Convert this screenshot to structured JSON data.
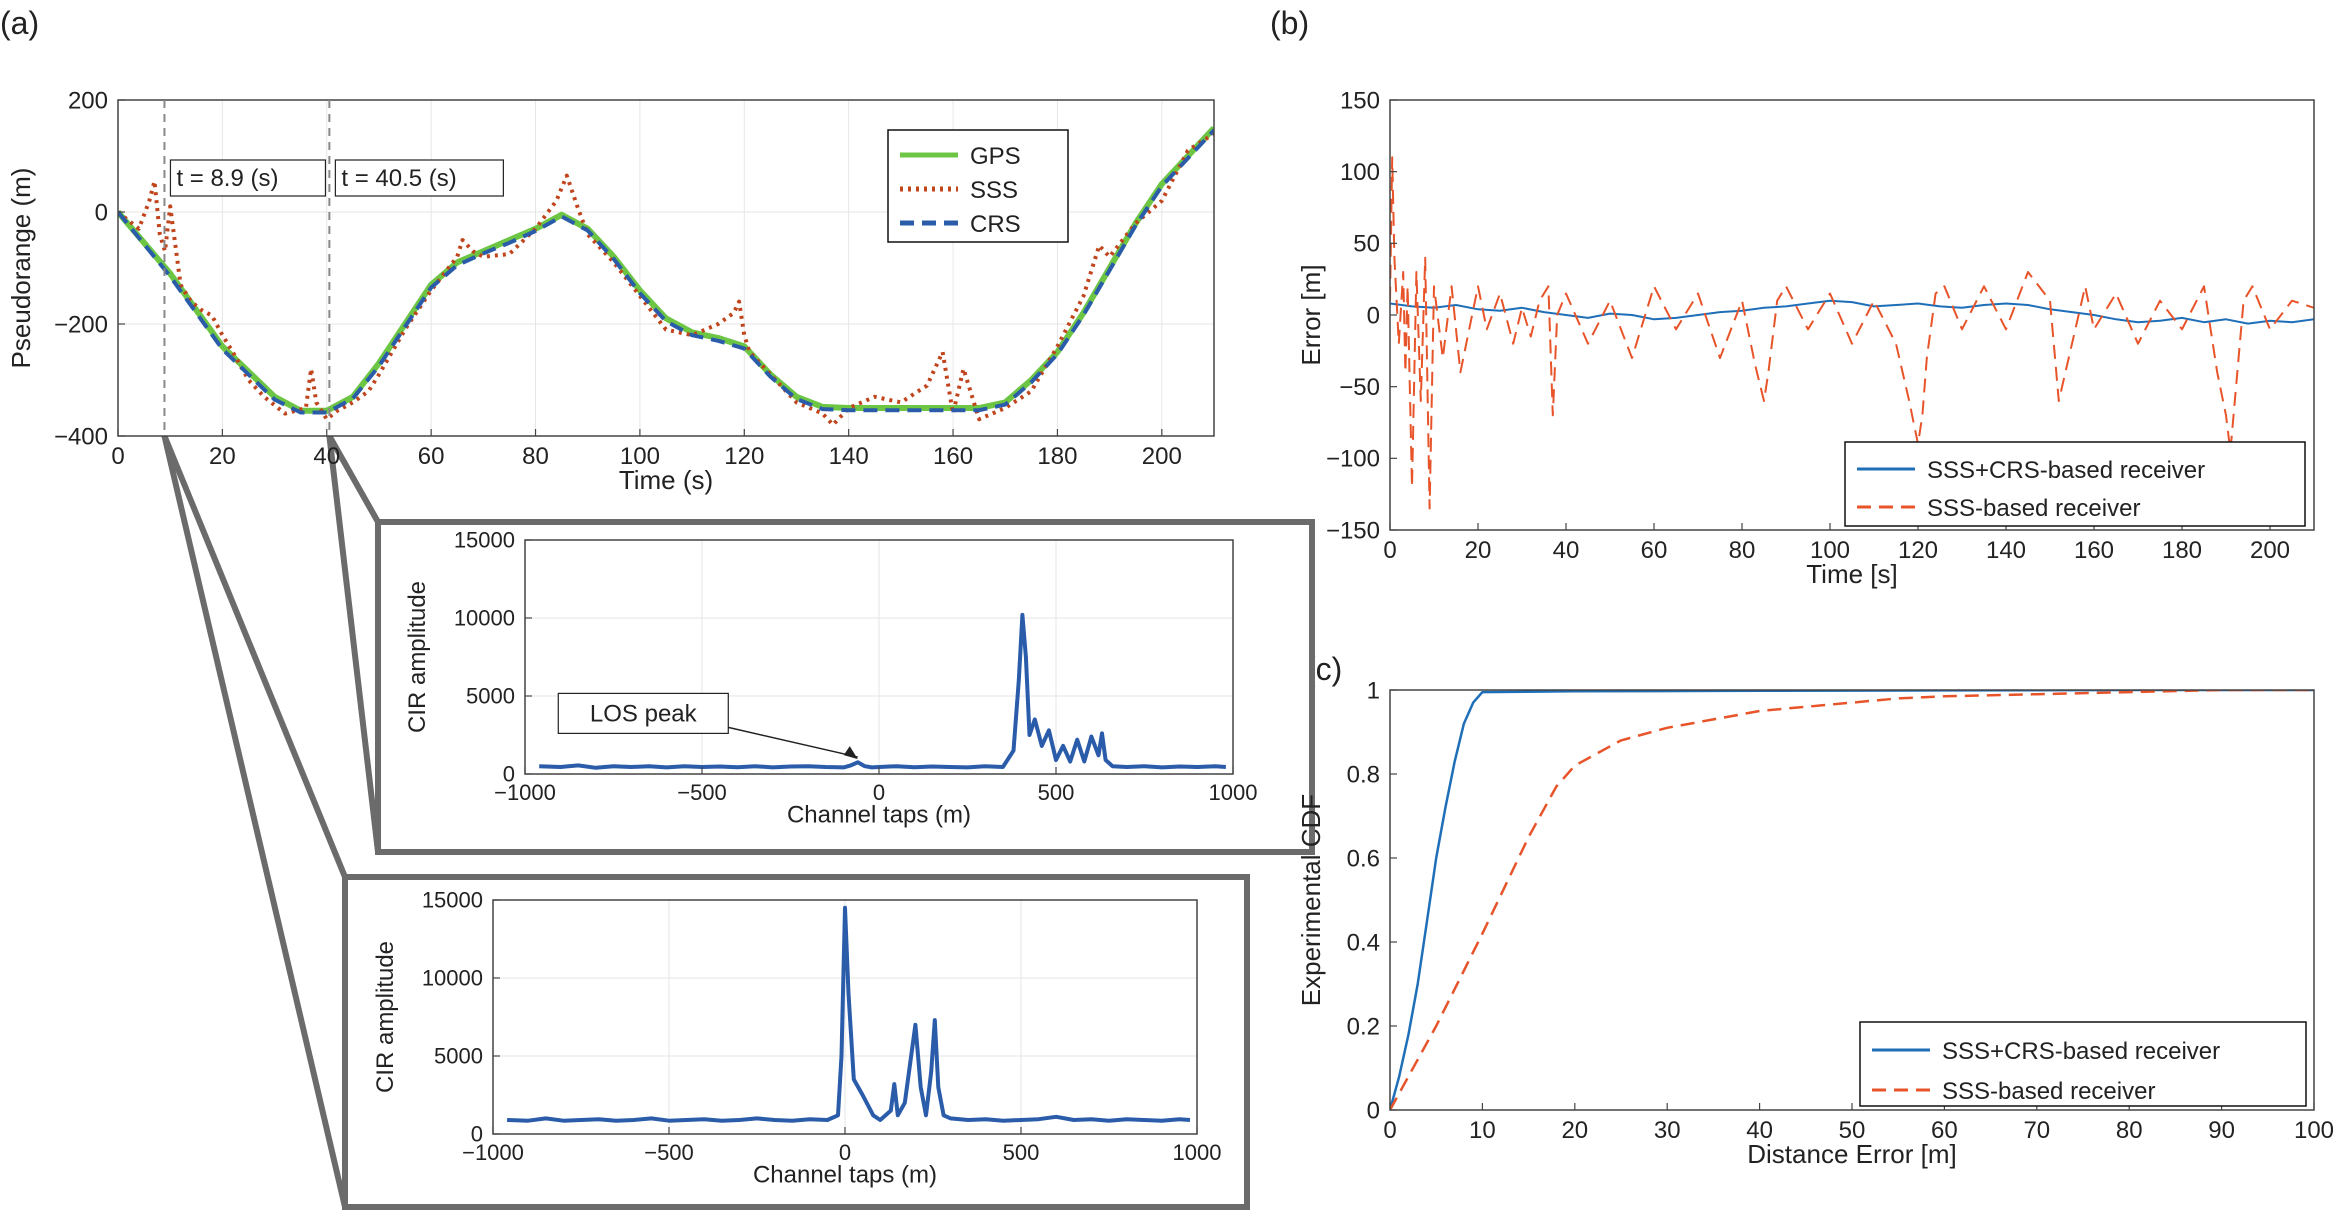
{
  "panel_labels": {
    "a": "(a)",
    "b": "(b)",
    "c": "(c)"
  },
  "colors": {
    "gps": "#6cc644",
    "sss": "#c0441c",
    "crs": "#2a5caa",
    "blue": "#1f6fb8",
    "orange": "#e8542a",
    "cir": "#2a5caa",
    "frame": "#6b6b6b",
    "dashed": "#888888"
  },
  "chart_data": [
    {
      "id": "pseudorange",
      "type": "line",
      "title": "",
      "xlabel": "Time (s)",
      "ylabel": "Pseudorange (m)",
      "xlim": [
        0,
        210
      ],
      "ylim": [
        -400,
        200
      ],
      "xticks": [
        0,
        20,
        40,
        60,
        80,
        100,
        120,
        140,
        160,
        180,
        200
      ],
      "yticks": [
        -400,
        -200,
        0,
        200
      ],
      "grid": true,
      "legend_position": "top-right",
      "annotations": [
        {
          "text": "t = 8.9 (s)",
          "x": 8.9
        },
        {
          "text": "t = 40.5 (s)",
          "x": 40.5
        }
      ],
      "series": [
        {
          "name": "GPS",
          "style": "solid",
          "x": [
            0,
            10,
            20,
            30,
            35,
            40,
            45,
            50,
            55,
            60,
            65,
            70,
            75,
            80,
            85,
            90,
            95,
            100,
            105,
            110,
            115,
            120,
            125,
            130,
            135,
            140,
            145,
            150,
            160,
            165,
            170,
            175,
            180,
            185,
            190,
            195,
            200,
            205,
            210
          ],
          "y": [
            0,
            -110,
            -240,
            -330,
            -355,
            -355,
            -330,
            -270,
            -200,
            -130,
            -90,
            -70,
            -50,
            -30,
            -5,
            -30,
            -80,
            -140,
            -190,
            -215,
            -225,
            -240,
            -290,
            -330,
            -348,
            -350,
            -350,
            -350,
            -350,
            -350,
            -340,
            -300,
            -250,
            -180,
            -100,
            -20,
            50,
            100,
            150
          ]
        },
        {
          "name": "SSS",
          "style": "dotted",
          "x": [
            0,
            2,
            4,
            6,
            7,
            8,
            9,
            10,
            12,
            14,
            16,
            18,
            20,
            22,
            25,
            28,
            30,
            32,
            36,
            37,
            38,
            40,
            42,
            45,
            48,
            50,
            55,
            60,
            65,
            66,
            68,
            70,
            75,
            80,
            84,
            86,
            88,
            90,
            95,
            100,
            105,
            110,
            115,
            118,
            119,
            120,
            121,
            125,
            130,
            135,
            137,
            140,
            145,
            150,
            155,
            158,
            160,
            162,
            165,
            170,
            175,
            180,
            185,
            188,
            190,
            195,
            200,
            205,
            210
          ],
          "y": [
            0,
            -15,
            -30,
            20,
            55,
            -40,
            -70,
            10,
            -130,
            -160,
            -175,
            -185,
            -220,
            -250,
            -300,
            -330,
            -345,
            -360,
            -350,
            -280,
            -340,
            -370,
            -355,
            -340,
            -320,
            -290,
            -210,
            -140,
            -80,
            -50,
            -70,
            -80,
            -75,
            -30,
            20,
            65,
            10,
            -40,
            -90,
            -150,
            -210,
            -220,
            -200,
            -180,
            -160,
            -220,
            -250,
            -290,
            -340,
            -360,
            -380,
            -350,
            -330,
            -340,
            -310,
            -250,
            -360,
            -280,
            -370,
            -350,
            -320,
            -240,
            -150,
            -60,
            -80,
            -20,
            20,
            110,
            140
          ]
        },
        {
          "name": "CRS",
          "style": "dashed",
          "x": [
            0,
            10,
            20,
            30,
            35,
            40,
            45,
            50,
            55,
            60,
            65,
            70,
            75,
            80,
            85,
            90,
            95,
            100,
            105,
            110,
            115,
            120,
            125,
            130,
            135,
            140,
            145,
            150,
            160,
            165,
            170,
            175,
            180,
            185,
            190,
            195,
            200,
            205,
            210
          ],
          "y": [
            0,
            -115,
            -245,
            -335,
            -358,
            -358,
            -333,
            -275,
            -205,
            -135,
            -95,
            -74,
            -55,
            -34,
            -8,
            -33,
            -84,
            -145,
            -195,
            -220,
            -230,
            -244,
            -294,
            -334,
            -352,
            -354,
            -354,
            -354,
            -354,
            -354,
            -344,
            -304,
            -254,
            -184,
            -104,
            -24,
            46,
            96,
            146
          ]
        }
      ]
    },
    {
      "id": "cir-top",
      "type": "line",
      "title": "",
      "xlabel": "Channel taps (m)",
      "ylabel": "CIR amplitude",
      "xlim": [
        -1000,
        1000
      ],
      "ylim": [
        0,
        15000
      ],
      "xticks": [
        -1000,
        -500,
        0,
        500,
        1000
      ],
      "yticks": [
        0,
        5000,
        10000,
        15000
      ],
      "grid": true,
      "annotations": [
        {
          "text": "LOS peak",
          "x": -60,
          "y": 700
        }
      ],
      "series": [
        {
          "name": "",
          "x": [
            -960,
            -900,
            -850,
            -800,
            -750,
            -700,
            -650,
            -600,
            -550,
            -500,
            -450,
            -400,
            -350,
            -300,
            -250,
            -200,
            -150,
            -100,
            -80,
            -60,
            -40,
            -20,
            0,
            50,
            100,
            150,
            200,
            250,
            300,
            350,
            380,
            395,
            405,
            415,
            425,
            440,
            460,
            480,
            500,
            520,
            540,
            560,
            580,
            600,
            620,
            630,
            640,
            660,
            700,
            750,
            800,
            850,
            900,
            950,
            980
          ],
          "y": [
            500,
            450,
            550,
            400,
            500,
            450,
            500,
            420,
            500,
            450,
            480,
            430,
            500,
            420,
            480,
            500,
            450,
            420,
            550,
            750,
            500,
            420,
            450,
            500,
            430,
            480,
            450,
            420,
            500,
            450,
            1500,
            6000,
            10200,
            7500,
            2500,
            3500,
            1800,
            2800,
            900,
            1800,
            800,
            2200,
            800,
            2400,
            1200,
            2600,
            900,
            500,
            450,
            500,
            420,
            480,
            450,
            500,
            450
          ]
        }
      ]
    },
    {
      "id": "cir-bottom",
      "type": "line",
      "title": "",
      "xlabel": "Channel taps (m)",
      "ylabel": "CIR amplitude",
      "xlim": [
        -1000,
        1000
      ],
      "ylim": [
        0,
        15000
      ],
      "xticks": [
        -1000,
        -500,
        0,
        500,
        1000
      ],
      "yticks": [
        0,
        5000,
        10000,
        15000
      ],
      "grid": true,
      "series": [
        {
          "name": "",
          "x": [
            -960,
            -900,
            -850,
            -800,
            -750,
            -700,
            -650,
            -600,
            -550,
            -500,
            -450,
            -400,
            -350,
            -300,
            -250,
            -200,
            -150,
            -100,
            -50,
            -20,
            -10,
            0,
            10,
            25,
            50,
            80,
            100,
            130,
            140,
            150,
            170,
            185,
            200,
            215,
            230,
            245,
            255,
            265,
            280,
            300,
            350,
            400,
            450,
            500,
            550,
            600,
            650,
            700,
            750,
            800,
            850,
            900,
            950,
            980
          ],
          "y": [
            900,
            850,
            1000,
            850,
            900,
            950,
            850,
            900,
            1000,
            850,
            900,
            950,
            850,
            900,
            1000,
            900,
            850,
            950,
            900,
            1200,
            5000,
            14500,
            9000,
            3500,
            2500,
            1200,
            900,
            1500,
            3200,
            1200,
            2000,
            4500,
            7000,
            3000,
            1200,
            4000,
            7300,
            3000,
            1200,
            1000,
            900,
            950,
            850,
            900,
            950,
            1100,
            900,
            950,
            850,
            950,
            900,
            850,
            950,
            900
          ]
        }
      ]
    },
    {
      "id": "error",
      "type": "line",
      "title": "",
      "xlabel": "Time [s]",
      "ylabel": "Error [m]",
      "xlim": [
        0,
        210
      ],
      "ylim": [
        -150,
        150
      ],
      "xticks": [
        0,
        20,
        40,
        60,
        80,
        100,
        120,
        140,
        160,
        180,
        200
      ],
      "yticks": [
        -150,
        -100,
        -50,
        0,
        50,
        100,
        150
      ],
      "grid": false,
      "legend_position": "bottom-right",
      "series": [
        {
          "name": "SSS+CRS-based receiver",
          "style": "solid",
          "x": [
            0,
            5,
            10,
            15,
            20,
            25,
            30,
            35,
            40,
            45,
            50,
            55,
            60,
            65,
            70,
            75,
            80,
            85,
            90,
            95,
            100,
            105,
            110,
            115,
            120,
            125,
            130,
            135,
            140,
            145,
            150,
            155,
            160,
            165,
            170,
            175,
            180,
            185,
            190,
            195,
            200,
            205,
            210
          ],
          "y": [
            8,
            6,
            5,
            7,
            4,
            3,
            5,
            2,
            0,
            -2,
            1,
            0,
            -3,
            -2,
            0,
            2,
            3,
            5,
            6,
            8,
            10,
            9,
            6,
            7,
            8,
            6,
            5,
            7,
            8,
            7,
            4,
            2,
            0,
            -3,
            -5,
            -4,
            -2,
            -5,
            -3,
            -6,
            -4,
            -5,
            -3
          ]
        },
        {
          "name": "SSS-based receiver",
          "style": "dashed",
          "x": [
            0,
            0.5,
            1,
            2,
            3,
            3.5,
            4,
            5,
            6,
            7,
            8,
            9,
            10,
            12,
            14,
            16,
            18,
            20,
            22,
            25,
            28,
            30,
            32,
            34,
            36,
            37,
            38,
            40,
            45,
            50,
            55,
            60,
            65,
            70,
            75,
            80,
            83,
            85,
            86,
            88,
            90,
            95,
            100,
            105,
            110,
            115,
            118,
            120,
            121,
            122,
            124,
            126,
            130,
            135,
            140,
            145,
            150,
            152,
            155,
            158,
            160,
            165,
            170,
            175,
            180,
            185,
            188,
            190,
            191,
            192,
            194,
            196,
            200,
            205,
            210
          ],
          "y": [
            10,
            110,
            40,
            -20,
            30,
            -40,
            20,
            -120,
            30,
            -60,
            40,
            -135,
            20,
            -30,
            20,
            -40,
            -10,
            20,
            -10,
            15,
            -20,
            5,
            -15,
            10,
            20,
            -70,
            0,
            15,
            -20,
            10,
            -30,
            20,
            -10,
            15,
            -30,
            10,
            -35,
            -60,
            -40,
            10,
            20,
            -10,
            15,
            -20,
            10,
            -20,
            -60,
            -90,
            -70,
            -30,
            15,
            20,
            -10,
            20,
            -10,
            30,
            10,
            -60,
            -20,
            20,
            -10,
            15,
            -20,
            10,
            -10,
            20,
            -40,
            -70,
            -95,
            -60,
            10,
            20,
            -10,
            10,
            5
          ]
        }
      ]
    },
    {
      "id": "cdf",
      "type": "line",
      "title": "",
      "xlabel": "Distance Error [m]",
      "ylabel": "Experimental CDF",
      "xlim": [
        0,
        100
      ],
      "ylim": [
        0,
        1
      ],
      "xticks": [
        0,
        10,
        20,
        30,
        40,
        50,
        60,
        70,
        80,
        90,
        100
      ],
      "yticks": [
        0,
        0.2,
        0.4,
        0.6,
        0.8,
        1
      ],
      "grid": false,
      "legend_position": "bottom-right",
      "series": [
        {
          "name": "SSS+CRS-based receiver",
          "style": "solid",
          "x": [
            0,
            1,
            2,
            3,
            4,
            5,
            6,
            7,
            8,
            9,
            10,
            20,
            40,
            60,
            80,
            100
          ],
          "y": [
            0,
            0.08,
            0.18,
            0.3,
            0.45,
            0.6,
            0.72,
            0.83,
            0.92,
            0.97,
            0.995,
            0.997,
            0.998,
            0.999,
            1,
            1
          ]
        },
        {
          "name": "SSS-based receiver",
          "style": "dashed",
          "x": [
            0,
            5,
            10,
            15,
            18,
            20,
            25,
            30,
            35,
            40,
            45,
            50,
            55,
            60,
            70,
            80,
            90,
            100
          ],
          "y": [
            0,
            0.2,
            0.42,
            0.65,
            0.77,
            0.82,
            0.88,
            0.91,
            0.93,
            0.95,
            0.96,
            0.97,
            0.98,
            0.985,
            0.99,
            0.995,
            1,
            1
          ]
        }
      ]
    }
  ]
}
